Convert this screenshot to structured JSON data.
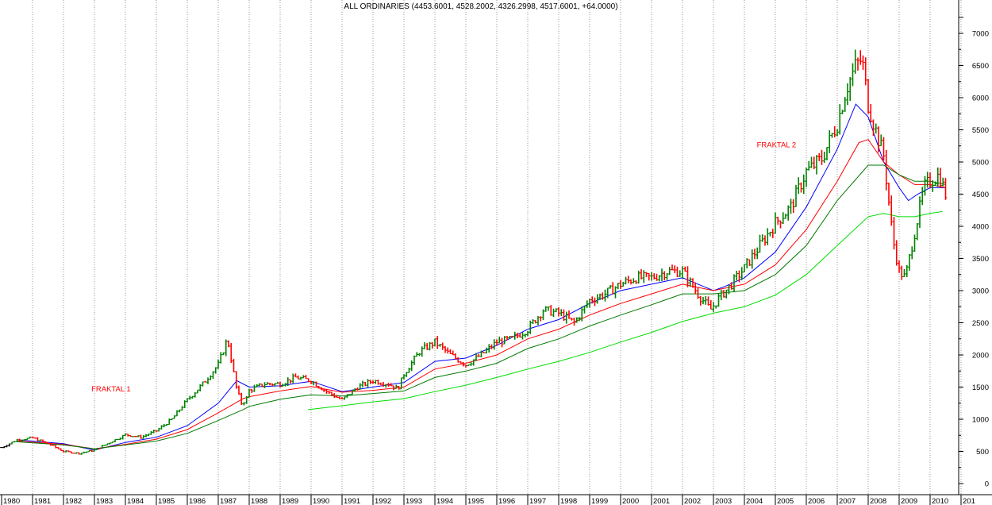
{
  "chart_data": {
    "type": "line",
    "title": "ALL ORDINARIES (4453.6001, 4528.2002, 4326.2998, 4517.6001, +64.0000)",
    "x_unit": "year",
    "xlim": [
      1980,
      2011
    ],
    "ylim": [
      -100,
      7450
    ],
    "y_ticks": [
      0,
      500,
      1000,
      1500,
      2000,
      2500,
      3000,
      3500,
      4000,
      4500,
      5000,
      5500,
      6000,
      6500,
      7000
    ],
    "x_ticks": [
      "1980",
      "1981",
      "1982",
      "1983",
      "1984",
      "1985",
      "1986",
      "1987",
      "1988",
      "1989",
      "1990",
      "1991",
      "1992",
      "1993",
      "1994",
      "1995",
      "1996",
      "1997",
      "1998",
      "1999",
      "2000",
      "2001",
      "2002",
      "2003",
      "2004",
      "2005",
      "2006",
      "2007",
      "2008",
      "2009",
      "2010",
      "201"
    ],
    "grid": {
      "vertical_dotted": true,
      "horizontal": false
    },
    "y_axis_side": "right",
    "colors": {
      "up_bar": "#008000",
      "down_bar": "#ff0000",
      "initial_bar": "#000000",
      "ma_blue": "#0000ff",
      "ma_red": "#ff0000",
      "ma_darkgreen": "#007a00",
      "ma_lightgreen": "#00dd00"
    },
    "annotations": [
      {
        "text": "FRAKTAL 1",
        "x": 1982.9,
        "y": 1430
      },
      {
        "text": "FRAKTAL 2",
        "x": 2004.4,
        "y": 5230
      }
    ],
    "price": {
      "description": "monthly closing level, drawn as OHLC bars",
      "x": [
        1980.0,
        1980.5,
        1981.0,
        1981.5,
        1982.0,
        1982.5,
        1983.0,
        1983.5,
        1984.0,
        1984.5,
        1985.0,
        1985.5,
        1986.0,
        1986.5,
        1987.0,
        1987.3,
        1987.6,
        1987.75,
        1987.9,
        1988.0,
        1988.5,
        1989.0,
        1989.5,
        1990.0,
        1990.5,
        1991.0,
        1991.5,
        1992.0,
        1992.5,
        1992.8,
        1993.0,
        1993.5,
        1994.0,
        1994.5,
        1995.0,
        1995.5,
        1996.0,
        1996.5,
        1997.0,
        1997.5,
        1998.0,
        1998.5,
        1999.0,
        1999.5,
        2000.0,
        2000.5,
        2001.0,
        2001.5,
        2002.0,
        2002.5,
        2002.9,
        2003.2,
        2003.5,
        2004.0,
        2004.5,
        2005.0,
        2005.5,
        2006.0,
        2006.5,
        2007.0,
        2007.3,
        2007.6,
        2007.8,
        2008.0,
        2008.3,
        2008.5,
        2008.8,
        2009.0,
        2009.2,
        2009.5,
        2009.8,
        2010.0,
        2010.3,
        2010.5
      ],
      "y": [
        560,
        680,
        710,
        620,
        500,
        470,
        520,
        640,
        760,
        720,
        820,
        1000,
        1300,
        1550,
        1850,
        2250,
        1450,
        1250,
        1300,
        1450,
        1550,
        1550,
        1650,
        1600,
        1430,
        1300,
        1500,
        1600,
        1550,
        1470,
        1700,
        2050,
        2200,
        2000,
        1850,
        2000,
        2200,
        2250,
        2400,
        2700,
        2650,
        2500,
        2850,
        2950,
        3100,
        3200,
        3200,
        3300,
        3300,
        2950,
        2700,
        2900,
        3050,
        3350,
        3700,
        4050,
        4300,
        4850,
        5050,
        5600,
        6150,
        6500,
        6600,
        5900,
        5400,
        5100,
        3800,
        3300,
        3200,
        3900,
        4600,
        4700,
        4800,
        4500
      ]
    },
    "series": [
      {
        "color_key": "ma_blue",
        "x": [
          1980.5,
          1982.0,
          1983.0,
          1984.0,
          1985.0,
          1986.0,
          1987.0,
          1987.6,
          1988.0,
          1989.0,
          1990.0,
          1991.0,
          1992.0,
          1993.0,
          1994.0,
          1995.0,
          1996.0,
          1997.0,
          1998.0,
          1999.0,
          2000.0,
          2001.0,
          2002.0,
          2003.0,
          2003.3,
          2004.0,
          2005.0,
          2006.0,
          2007.0,
          2007.6,
          2008.0,
          2008.5,
          2009.0,
          2009.3,
          2009.6,
          2010.0,
          2010.5
        ],
        "y": [
          680,
          620,
          520,
          640,
          720,
          900,
          1250,
          1600,
          1500,
          1520,
          1590,
          1430,
          1500,
          1570,
          1900,
          1950,
          2150,
          2400,
          2550,
          2800,
          3000,
          3100,
          3200,
          3000,
          3050,
          3200,
          3600,
          4300,
          5200,
          5900,
          5700,
          5000,
          4600,
          4400,
          4500,
          4600,
          4600
        ]
      },
      {
        "color_key": "ma_red",
        "x": [
          1980.5,
          1982.0,
          1983.0,
          1984.0,
          1985.0,
          1986.0,
          1987.0,
          1987.8,
          1988.0,
          1989.0,
          1990.0,
          1991.0,
          1992.0,
          1993.0,
          1994.0,
          1995.0,
          1996.0,
          1997.0,
          1998.0,
          1999.0,
          2000.0,
          2001.0,
          2002.0,
          2003.0,
          2004.0,
          2005.0,
          2006.0,
          2007.0,
          2007.7,
          2008.0,
          2008.5,
          2009.0,
          2009.5,
          2010.0,
          2010.5
        ],
        "y": [
          660,
          610,
          540,
          610,
          690,
          840,
          1100,
          1320,
          1350,
          1440,
          1510,
          1420,
          1450,
          1500,
          1780,
          1870,
          2000,
          2250,
          2400,
          2620,
          2800,
          2950,
          3100,
          3000,
          3100,
          3400,
          3950,
          4700,
          5300,
          5350,
          5000,
          4800,
          4650,
          4650,
          4600
        ]
      },
      {
        "color_key": "ma_darkgreen",
        "x": [
          1980.5,
          1982.0,
          1983.0,
          1984.0,
          1985.0,
          1986.0,
          1987.0,
          1987.8,
          1988.0,
          1989.0,
          1990.0,
          1991.0,
          1992.0,
          1993.0,
          1994.0,
          1995.0,
          1996.0,
          1997.0,
          1998.0,
          1999.0,
          2000.0,
          2001.0,
          2002.0,
          2003.0,
          2004.0,
          2005.0,
          2006.0,
          2007.0,
          2008.0,
          2008.5,
          2009.0,
          2009.5,
          2010.0,
          2010.5
        ],
        "y": [
          650,
          600,
          540,
          600,
          660,
          780,
          980,
          1150,
          1200,
          1310,
          1380,
          1360,
          1400,
          1440,
          1650,
          1750,
          1870,
          2100,
          2250,
          2450,
          2620,
          2780,
          2950,
          2950,
          3000,
          3250,
          3700,
          4400,
          4950,
          4950,
          4800,
          4700,
          4700,
          4650
        ]
      },
      {
        "color_key": "ma_lightgreen",
        "x": [
          1989.9,
          1991.0,
          1992.0,
          1993.0,
          1994.0,
          1995.0,
          1996.0,
          1997.0,
          1998.0,
          1999.0,
          2000.0,
          2001.0,
          2002.0,
          2003.0,
          2004.0,
          2005.0,
          2006.0,
          2007.0,
          2008.0,
          2008.5,
          2009.0,
          2009.5,
          2010.0,
          2010.4
        ],
        "y": [
          1150,
          1210,
          1270,
          1320,
          1430,
          1530,
          1650,
          1780,
          1900,
          2040,
          2200,
          2350,
          2520,
          2650,
          2750,
          2930,
          3250,
          3700,
          4150,
          4200,
          4150,
          4150,
          4200,
          4230
        ]
      }
    ]
  }
}
